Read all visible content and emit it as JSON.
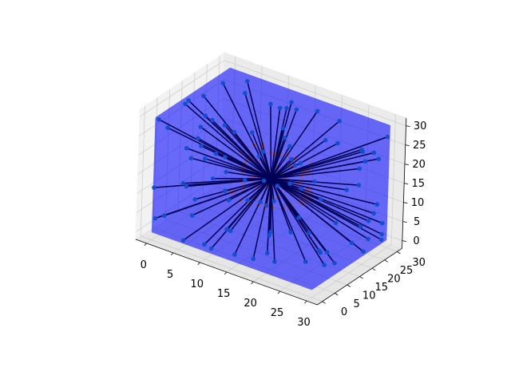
{
  "chart_data": {
    "type": "scatter",
    "projection": "3d",
    "title": "",
    "xlabel": "",
    "ylabel": "",
    "zlabel": "",
    "xlim": [
      -2,
      32
    ],
    "ylim": [
      -2,
      32
    ],
    "zlim": [
      -2,
      32
    ],
    "x_ticks": [
      "0",
      "5",
      "10",
      "15",
      "20",
      "25",
      "30"
    ],
    "y_ticks": [
      "0",
      "5",
      "10",
      "15",
      "20",
      "25",
      "30"
    ],
    "z_ticks": [
      "0",
      "5",
      "10",
      "15",
      "20",
      "25",
      "30"
    ],
    "grid": true,
    "legend": "none",
    "center": [
      15,
      15,
      15
    ],
    "cube": {
      "min": 0,
      "max": 30,
      "color": "#0000ff",
      "opacity": 0.5
    },
    "outer_points": {
      "color": "#1f77b4",
      "count": 100,
      "placement": "scattered over the six faces of the cube [0,30]^3"
    },
    "inner_points": {
      "color": "#ff7f0e",
      "count": 100,
      "placement": "same directions as outer points, at about 0.35 of the distance from center"
    },
    "segments": {
      "color": "#000000",
      "from": "center",
      "to": "each outer point"
    }
  }
}
